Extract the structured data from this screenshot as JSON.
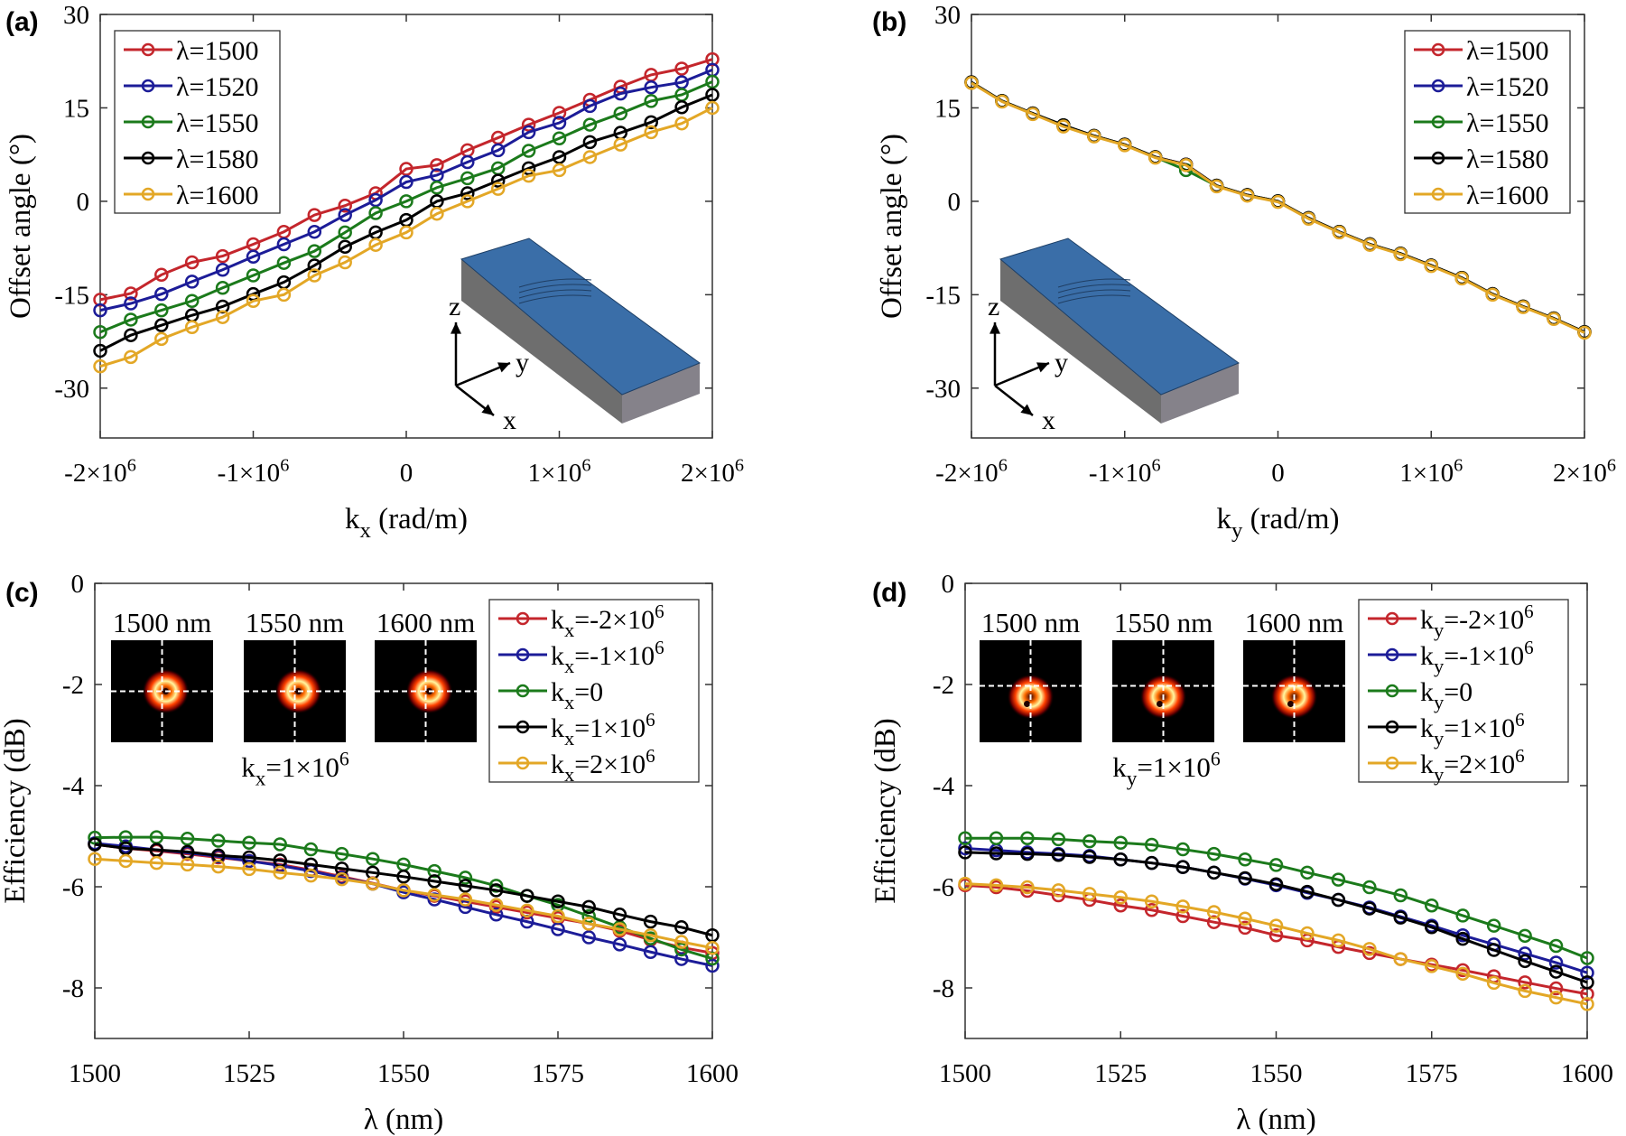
{
  "colors": {
    "red": "#c4262c",
    "blue": "#1c1c98",
    "green": "#1b7a1b",
    "black": "#000000",
    "yellow": "#e3a726"
  },
  "chart_data": [
    {
      "panel_label": "(a)",
      "type": "line",
      "xlabel": "k_{x} (rad/m)",
      "ylabel": "Offset angle (°)",
      "xlim": [
        -2000000,
        2000000
      ],
      "ylim": [
        -38,
        30
      ],
      "xticks": [
        -2000000,
        -1000000,
        0,
        1000000,
        2000000
      ],
      "xtick_labels": [
        "-2×10^{6}",
        "-1×10^{6}",
        "0",
        "1×10^{6}",
        "2×10^{6}"
      ],
      "yticks": [
        30,
        15,
        0,
        -15,
        -30
      ],
      "ytick_labels": [
        "30",
        "15",
        "0",
        "-15",
        "-30"
      ],
      "grid": false,
      "legend": "top-left",
      "x": [
        -2000000,
        -1800000,
        -1600000,
        -1400000,
        -1200000,
        -1000000,
        -800000,
        -600000,
        -400000,
        -200000,
        0,
        200000,
        400000,
        600000,
        800000,
        1000000,
        1200000,
        1400000,
        1600000,
        1800000,
        2000000
      ],
      "series": [
        {
          "name": "λ=1500",
          "color": "red",
          "values": [
            -15.8,
            -14.8,
            -11.8,
            -9.8,
            -8.8,
            -6.9,
            -4.9,
            -2.2,
            -0.7,
            1.3,
            5.2,
            5.8,
            8.2,
            10.2,
            12.3,
            14.2,
            16.3,
            18.4,
            20.3,
            21.3,
            22.8
          ]
        },
        {
          "name": "λ=1520",
          "color": "blue",
          "values": [
            -17.5,
            -16.4,
            -14.9,
            -12.9,
            -11.0,
            -8.9,
            -6.9,
            -4.9,
            -2.2,
            0.2,
            3.1,
            4.2,
            6.3,
            8.2,
            11.1,
            12.6,
            15.3,
            17.3,
            18.3,
            19.1,
            21.1
          ]
        },
        {
          "name": "λ=1550",
          "color": "green",
          "values": [
            -21.0,
            -19.0,
            -17.5,
            -16.0,
            -13.9,
            -11.9,
            -9.9,
            -8.0,
            -5.0,
            -1.9,
            0.0,
            2.2,
            3.7,
            5.3,
            8.1,
            10.1,
            12.3,
            14.1,
            16.1,
            17.1,
            19.2
          ]
        },
        {
          "name": "λ=1580",
          "color": "black",
          "values": [
            -24.0,
            -21.5,
            -19.9,
            -18.3,
            -16.9,
            -14.9,
            -13.0,
            -10.3,
            -7.3,
            -5.0,
            -3.0,
            0.0,
            1.3,
            3.3,
            5.3,
            7.1,
            9.5,
            11.0,
            12.7,
            15.1,
            17.1
          ]
        },
        {
          "name": "λ=1600",
          "color": "yellow",
          "values": [
            -26.5,
            -25.0,
            -22.1,
            -20.2,
            -18.6,
            -16.0,
            -15.0,
            -11.9,
            -9.8,
            -7.0,
            -5.0,
            -2.0,
            0.0,
            2.0,
            4.1,
            5.0,
            7.1,
            9.1,
            11.1,
            12.5,
            15.0
          ]
        }
      ],
      "inset": {
        "type": "waveguide",
        "axis_labels": [
          "z",
          "y",
          "x"
        ]
      }
    },
    {
      "panel_label": "(b)",
      "type": "line",
      "xlabel": "k_{y} (rad/m)",
      "ylabel": "Offset angle (°)",
      "xlim": [
        -2000000,
        2000000
      ],
      "ylim": [
        -38,
        30
      ],
      "xticks": [
        -2000000,
        -1000000,
        0,
        1000000,
        2000000
      ],
      "xtick_labels": [
        "-2×10^{6}",
        "-1×10^{6}",
        "0",
        "1×10^{6}",
        "2×10^{6}"
      ],
      "yticks": [
        30,
        15,
        0,
        -15,
        -30
      ],
      "ytick_labels": [
        "30",
        "15",
        "0",
        "-15",
        "-30"
      ],
      "grid": false,
      "legend": "top-right",
      "x": [
        -2000000,
        -1800000,
        -1600000,
        -1400000,
        -1200000,
        -1000000,
        -800000,
        -600000,
        -400000,
        -200000,
        0,
        200000,
        400000,
        600000,
        800000,
        1000000,
        1200000,
        1400000,
        1600000,
        1800000,
        2000000
      ],
      "series": [
        {
          "name": "λ=1500",
          "color": "red",
          "values": [
            19.1,
            16.1,
            14.1,
            12.2,
            10.5,
            9.1,
            7.1,
            5.9,
            2.5,
            1.0,
            0.0,
            -2.7,
            -4.9,
            -6.9,
            -8.4,
            -10.3,
            -12.3,
            -14.9,
            -16.9,
            -18.8,
            -21.0
          ]
        },
        {
          "name": "λ=1520",
          "color": "blue",
          "values": [
            19.1,
            16.1,
            14.1,
            12.2,
            10.5,
            9.1,
            7.1,
            5.9,
            2.5,
            1.0,
            0.0,
            -2.7,
            -4.9,
            -6.9,
            -8.4,
            -10.3,
            -12.3,
            -14.9,
            -16.9,
            -18.8,
            -21.0
          ]
        },
        {
          "name": "λ=1550",
          "color": "green",
          "values": [
            19.1,
            16.1,
            14.1,
            12.2,
            10.5,
            9.1,
            7.1,
            5.0,
            2.5,
            1.0,
            0.0,
            -2.7,
            -4.9,
            -6.9,
            -8.4,
            -10.3,
            -12.3,
            -14.9,
            -16.9,
            -18.8,
            -21.0
          ]
        },
        {
          "name": "λ=1580",
          "color": "black",
          "values": [
            19.1,
            16.1,
            14.1,
            12.2,
            10.5,
            9.1,
            7.1,
            5.9,
            2.5,
            1.0,
            0.0,
            -2.7,
            -4.9,
            -6.9,
            -8.4,
            -10.3,
            -12.3,
            -14.9,
            -16.9,
            -18.8,
            -21.0
          ]
        },
        {
          "name": "λ=1600",
          "color": "yellow",
          "values": [
            19.0,
            16.0,
            14.0,
            12.0,
            10.4,
            9.0,
            7.0,
            5.8,
            2.4,
            0.9,
            -0.1,
            -2.8,
            -5.0,
            -7.0,
            -8.5,
            -10.4,
            -12.4,
            -15.0,
            -17.0,
            -18.9,
            -21.1
          ]
        }
      ],
      "inset": {
        "type": "waveguide",
        "axis_labels": [
          "z",
          "y",
          "x"
        ]
      }
    },
    {
      "panel_label": "(c)",
      "type": "line",
      "xlabel": "λ (nm)",
      "ylabel": "Efficiency (dB)",
      "xlim": [
        1500,
        1600
      ],
      "ylim": [
        -9,
        0
      ],
      "xticks": [
        1500,
        1525,
        1550,
        1575,
        1600
      ],
      "xtick_labels": [
        "1500",
        "1525",
        "1550",
        "1575",
        "1600"
      ],
      "yticks": [
        0,
        -2,
        -4,
        -6,
        -8
      ],
      "ytick_labels": [
        "0",
        "-2",
        "-4",
        "-6",
        "-8"
      ],
      "grid": false,
      "legend": "top-right",
      "x": [
        1500,
        1505,
        1510,
        1515,
        1520,
        1525,
        1530,
        1535,
        1540,
        1545,
        1550,
        1555,
        1560,
        1565,
        1570,
        1575,
        1580,
        1585,
        1590,
        1595,
        1600
      ],
      "series": [
        {
          "name": "k_{x}=-2×10^{6}",
          "color": "red",
          "values": [
            -5.16,
            -5.24,
            -5.29,
            -5.35,
            -5.42,
            -5.49,
            -5.56,
            -5.67,
            -5.8,
            -5.93,
            -6.07,
            -6.18,
            -6.29,
            -6.4,
            -6.51,
            -6.62,
            -6.73,
            -6.87,
            -7.05,
            -7.2,
            -7.31
          ]
        },
        {
          "name": "k_{x}=-1×10^{6}",
          "color": "blue",
          "values": [
            -5.14,
            -5.2,
            -5.27,
            -5.33,
            -5.4,
            -5.49,
            -5.58,
            -5.69,
            -5.82,
            -5.94,
            -6.11,
            -6.25,
            -6.4,
            -6.55,
            -6.69,
            -6.84,
            -7.0,
            -7.14,
            -7.29,
            -7.43,
            -7.56
          ]
        },
        {
          "name": "k_{x}=0",
          "color": "green",
          "values": [
            -5.03,
            -5.02,
            -5.02,
            -5.05,
            -5.09,
            -5.13,
            -5.16,
            -5.26,
            -5.35,
            -5.45,
            -5.56,
            -5.69,
            -5.82,
            -5.98,
            -6.18,
            -6.36,
            -6.58,
            -6.8,
            -7.02,
            -7.24,
            -7.42
          ]
        },
        {
          "name": "k_{x}=1×10^{6}",
          "color": "black",
          "values": [
            -5.16,
            -5.24,
            -5.27,
            -5.31,
            -5.38,
            -5.42,
            -5.48,
            -5.56,
            -5.64,
            -5.72,
            -5.8,
            -5.89,
            -5.98,
            -6.07,
            -6.18,
            -6.29,
            -6.4,
            -6.55,
            -6.69,
            -6.8,
            -6.96
          ]
        },
        {
          "name": "k_{x}=2×10^{6}",
          "color": "yellow",
          "values": [
            -5.45,
            -5.49,
            -5.53,
            -5.56,
            -5.6,
            -5.65,
            -5.72,
            -5.78,
            -5.85,
            -5.94,
            -6.07,
            -6.16,
            -6.25,
            -6.36,
            -6.47,
            -6.58,
            -6.73,
            -6.84,
            -6.96,
            -7.09,
            -7.21
          ]
        }
      ],
      "inset": {
        "type": "beam-profiles",
        "labels": [
          "1500 nm",
          "1550 nm",
          "1600 nm"
        ],
        "caption": "k_{x}=1×10^{6}"
      }
    },
    {
      "panel_label": "(d)",
      "type": "line",
      "xlabel": "λ (nm)",
      "ylabel": "Efficiency (dB)",
      "xlim": [
        1500,
        1600
      ],
      "ylim": [
        -9,
        0
      ],
      "xticks": [
        1500,
        1525,
        1550,
        1575,
        1600
      ],
      "xtick_labels": [
        "1500",
        "1525",
        "1550",
        "1575",
        "1600"
      ],
      "yticks": [
        0,
        -2,
        -4,
        -6,
        -8
      ],
      "ytick_labels": [
        "0",
        "-2",
        "-4",
        "-6",
        "-8"
      ],
      "grid": false,
      "legend": "top-right",
      "x": [
        1500,
        1505,
        1510,
        1515,
        1520,
        1525,
        1530,
        1535,
        1540,
        1545,
        1550,
        1555,
        1560,
        1565,
        1570,
        1575,
        1580,
        1585,
        1590,
        1595,
        1600
      ],
      "series": [
        {
          "name": "k_{y}=-2×10^{6}",
          "color": "red",
          "values": [
            -5.97,
            -6.01,
            -6.08,
            -6.17,
            -6.26,
            -6.37,
            -6.46,
            -6.58,
            -6.7,
            -6.81,
            -6.96,
            -7.06,
            -7.19,
            -7.31,
            -7.43,
            -7.54,
            -7.65,
            -7.77,
            -7.89,
            -8.01,
            -8.12
          ]
        },
        {
          "name": "k_{y}=-1×10^{6}",
          "color": "blue",
          "values": [
            -5.24,
            -5.28,
            -5.32,
            -5.35,
            -5.39,
            -5.46,
            -5.53,
            -5.61,
            -5.72,
            -5.84,
            -5.97,
            -6.12,
            -6.26,
            -6.41,
            -6.59,
            -6.77,
            -6.96,
            -7.14,
            -7.32,
            -7.5,
            -7.7
          ]
        },
        {
          "name": "k_{y}=0",
          "color": "green",
          "values": [
            -5.04,
            -5.04,
            -5.04,
            -5.06,
            -5.1,
            -5.13,
            -5.17,
            -5.26,
            -5.35,
            -5.46,
            -5.57,
            -5.72,
            -5.86,
            -6.01,
            -6.17,
            -6.37,
            -6.57,
            -6.77,
            -6.97,
            -7.17,
            -7.41
          ]
        },
        {
          "name": "k_{y}=1×10^{6}",
          "color": "black",
          "values": [
            -5.32,
            -5.34,
            -5.35,
            -5.37,
            -5.41,
            -5.46,
            -5.53,
            -5.61,
            -5.72,
            -5.83,
            -5.95,
            -6.1,
            -6.26,
            -6.43,
            -6.61,
            -6.8,
            -7.03,
            -7.25,
            -7.47,
            -7.68,
            -7.89
          ]
        },
        {
          "name": "k_{y}=2×10^{6}",
          "color": "yellow",
          "values": [
            -5.94,
            -5.97,
            -6.01,
            -6.07,
            -6.14,
            -6.21,
            -6.29,
            -6.39,
            -6.5,
            -6.63,
            -6.77,
            -6.92,
            -7.06,
            -7.23,
            -7.43,
            -7.57,
            -7.72,
            -7.9,
            -8.06,
            -8.19,
            -8.32
          ]
        }
      ],
      "inset": {
        "type": "beam-profiles",
        "labels": [
          "1500 nm",
          "1550 nm",
          "1600 nm"
        ],
        "caption": "k_{y}=1×10^{6}"
      }
    }
  ]
}
